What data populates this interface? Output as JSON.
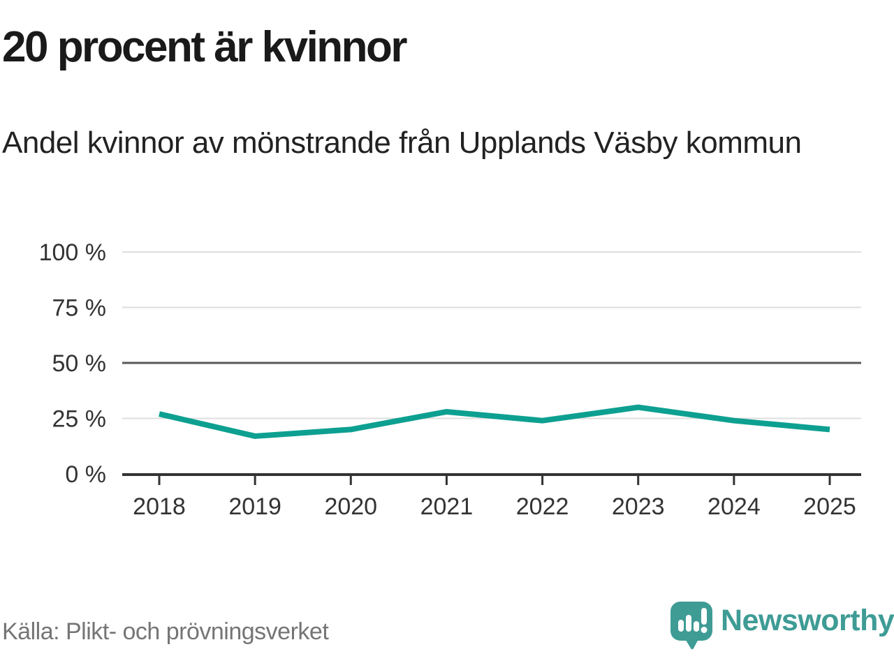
{
  "title": "20 procent är kvinnor",
  "subtitle": "Andel kvinnor av mönstrande från Upplands Väsby kommun",
  "source": "Källa: Plikt- och prövningsverket",
  "brand": {
    "name": "Newsworthy",
    "icon": "newsworthy-speech-bubble-bar-chart-icon",
    "color": "#3e9c95"
  },
  "colors": {
    "line": "#0da091",
    "grid_light": "#dedede",
    "grid_mid": "#595959",
    "axis": "#333333",
    "tick_text": "#333333",
    "title_text": "#1a1a1a",
    "subtitle_text": "#222222",
    "source_text": "#757575"
  },
  "chart_data": {
    "type": "line",
    "x": [
      "2018",
      "2019",
      "2020",
      "2021",
      "2022",
      "2023",
      "2024",
      "2025"
    ],
    "series": [
      {
        "name": "Andel kvinnor av mönstrande",
        "values": [
          27,
          17,
          20,
          28,
          24,
          30,
          24,
          20
        ]
      }
    ],
    "title": "20 procent är kvinnor",
    "subtitle": "Andel kvinnor av mönstrande från Upplands Väsby kommun",
    "xlabel": "",
    "ylabel": "",
    "unit": "%",
    "y_ticks": [
      0,
      25,
      50,
      75,
      100
    ],
    "y_tick_labels": [
      "0 %",
      "25 %",
      "50 %",
      "75 %",
      "100 %"
    ],
    "ylim": [
      0,
      100
    ],
    "grid": true,
    "legend": false
  }
}
